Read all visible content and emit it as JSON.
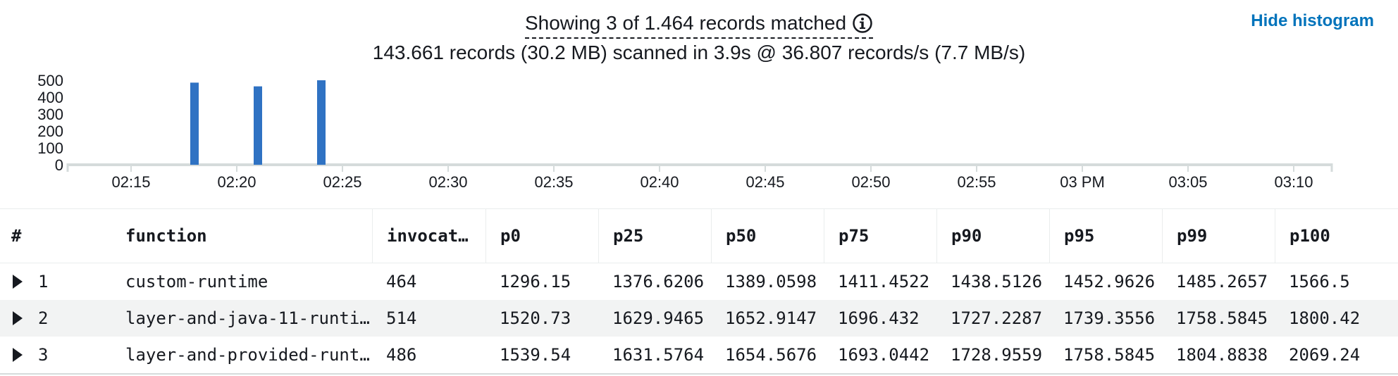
{
  "summary": {
    "matched_text": "Showing 3 of 1.464 records matched",
    "scanned_text": "143.661 records (30.2 MB) scanned in 3.9s @ 36.807 records/s (7.7 MB/s)"
  },
  "hide_histogram_label": "Hide histogram",
  "histogram": {
    "y_ticks": [
      "500",
      "400",
      "300",
      "200",
      "100",
      "0"
    ],
    "x_ticks": [
      "02:15",
      "02:20",
      "02:25",
      "02:30",
      "02:35",
      "02:40",
      "02:45",
      "02:50",
      "02:55",
      "03 PM",
      "03:05",
      "03:10"
    ],
    "bar_color": "#2f72c3"
  },
  "chart_data": {
    "type": "bar",
    "x": [
      "02:18",
      "02:21",
      "02:24"
    ],
    "values": [
      486,
      464,
      514
    ],
    "ylim": [
      0,
      500
    ],
    "xlim": [
      "02:12",
      "03:12"
    ]
  },
  "table": {
    "columns": [
      "#",
      "function",
      "invocat…",
      "p0",
      "p25",
      "p50",
      "p75",
      "p90",
      "p95",
      "p99",
      "p100"
    ],
    "rows": [
      {
        "num": "1",
        "function": "custom-runtime",
        "invocations": "464",
        "p0": "1296.15",
        "p25": "1376.6206",
        "p50": "1389.0598",
        "p75": "1411.4522",
        "p90": "1438.5126",
        "p95": "1452.9626",
        "p99": "1485.2657",
        "p100": "1566.5"
      },
      {
        "num": "2",
        "function": "layer-and-java-11-runti…",
        "invocations": "514",
        "p0": "1520.73",
        "p25": "1629.9465",
        "p50": "1652.9147",
        "p75": "1696.432",
        "p90": "1727.2287",
        "p95": "1739.3556",
        "p99": "1758.5845",
        "p100": "1800.42"
      },
      {
        "num": "3",
        "function": "layer-and-provided-runt…",
        "invocations": "486",
        "p0": "1539.54",
        "p25": "1631.5764",
        "p50": "1654.5676",
        "p75": "1693.0442",
        "p90": "1728.9559",
        "p95": "1758.5845",
        "p99": "1804.8838",
        "p100": "2069.24"
      }
    ]
  }
}
